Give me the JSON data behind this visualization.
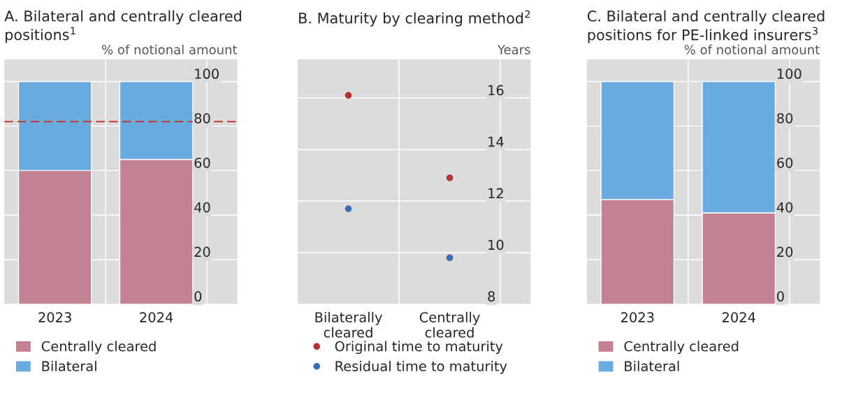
{
  "chart_data": [
    {
      "type": "bar",
      "title": "A. Bilateral and centrally cleared\npositions$^{1}$",
      "ylabel": "% of notional amount",
      "categories": [
        "2023",
        "2024"
      ],
      "stacked": true,
      "series": [
        {
          "name": "Centrally cleared",
          "color": "#c38291",
          "values": [
            60,
            65
          ]
        },
        {
          "name": "Bilateral",
          "color": "#6aace0",
          "values": [
            40,
            35
          ]
        }
      ],
      "ylim": [
        0,
        110
      ],
      "yticks": [
        0,
        20,
        40,
        60,
        80,
        100
      ],
      "grid": true,
      "legend": "bottom",
      "ref_lines": [
        {
          "axis": "y",
          "value": 82,
          "color": "#c0392b",
          "line_style": "dashed"
        }
      ]
    },
    {
      "type": "scatter",
      "title": "B. Maturity by clearing method$^{2}$",
      "ylabel": "Years",
      "categories": [
        "Bilaterally\ncleared",
        "Centrally\ncleared"
      ],
      "series": [
        {
          "name": "Original time to maturity",
          "color": "#b83232",
          "values": [
            16.1,
            12.9
          ]
        },
        {
          "name": "Residual time to maturity",
          "color": "#3a6db5",
          "values": [
            11.7,
            9.8
          ]
        }
      ],
      "ylim": [
        8,
        17.5
      ],
      "yticks": [
        8,
        10,
        12,
        14,
        16
      ],
      "grid": true,
      "legend": "bottom",
      "marker": "circle"
    },
    {
      "type": "bar",
      "title": "C. Bilateral and centrally cleared\npositions for PE-linked insurers$^{3}$",
      "ylabel": "% of notional amount",
      "categories": [
        "2023",
        "2024"
      ],
      "stacked": true,
      "series": [
        {
          "name": "Centrally cleared",
          "color": "#c38291",
          "values": [
            47,
            41
          ]
        },
        {
          "name": "Bilateral",
          "color": "#6aace0",
          "values": [
            53,
            59
          ]
        }
      ],
      "ylim": [
        0,
        110
      ],
      "yticks": [
        0,
        20,
        40,
        60,
        80,
        100
      ],
      "grid": true,
      "legend": "bottom"
    }
  ]
}
